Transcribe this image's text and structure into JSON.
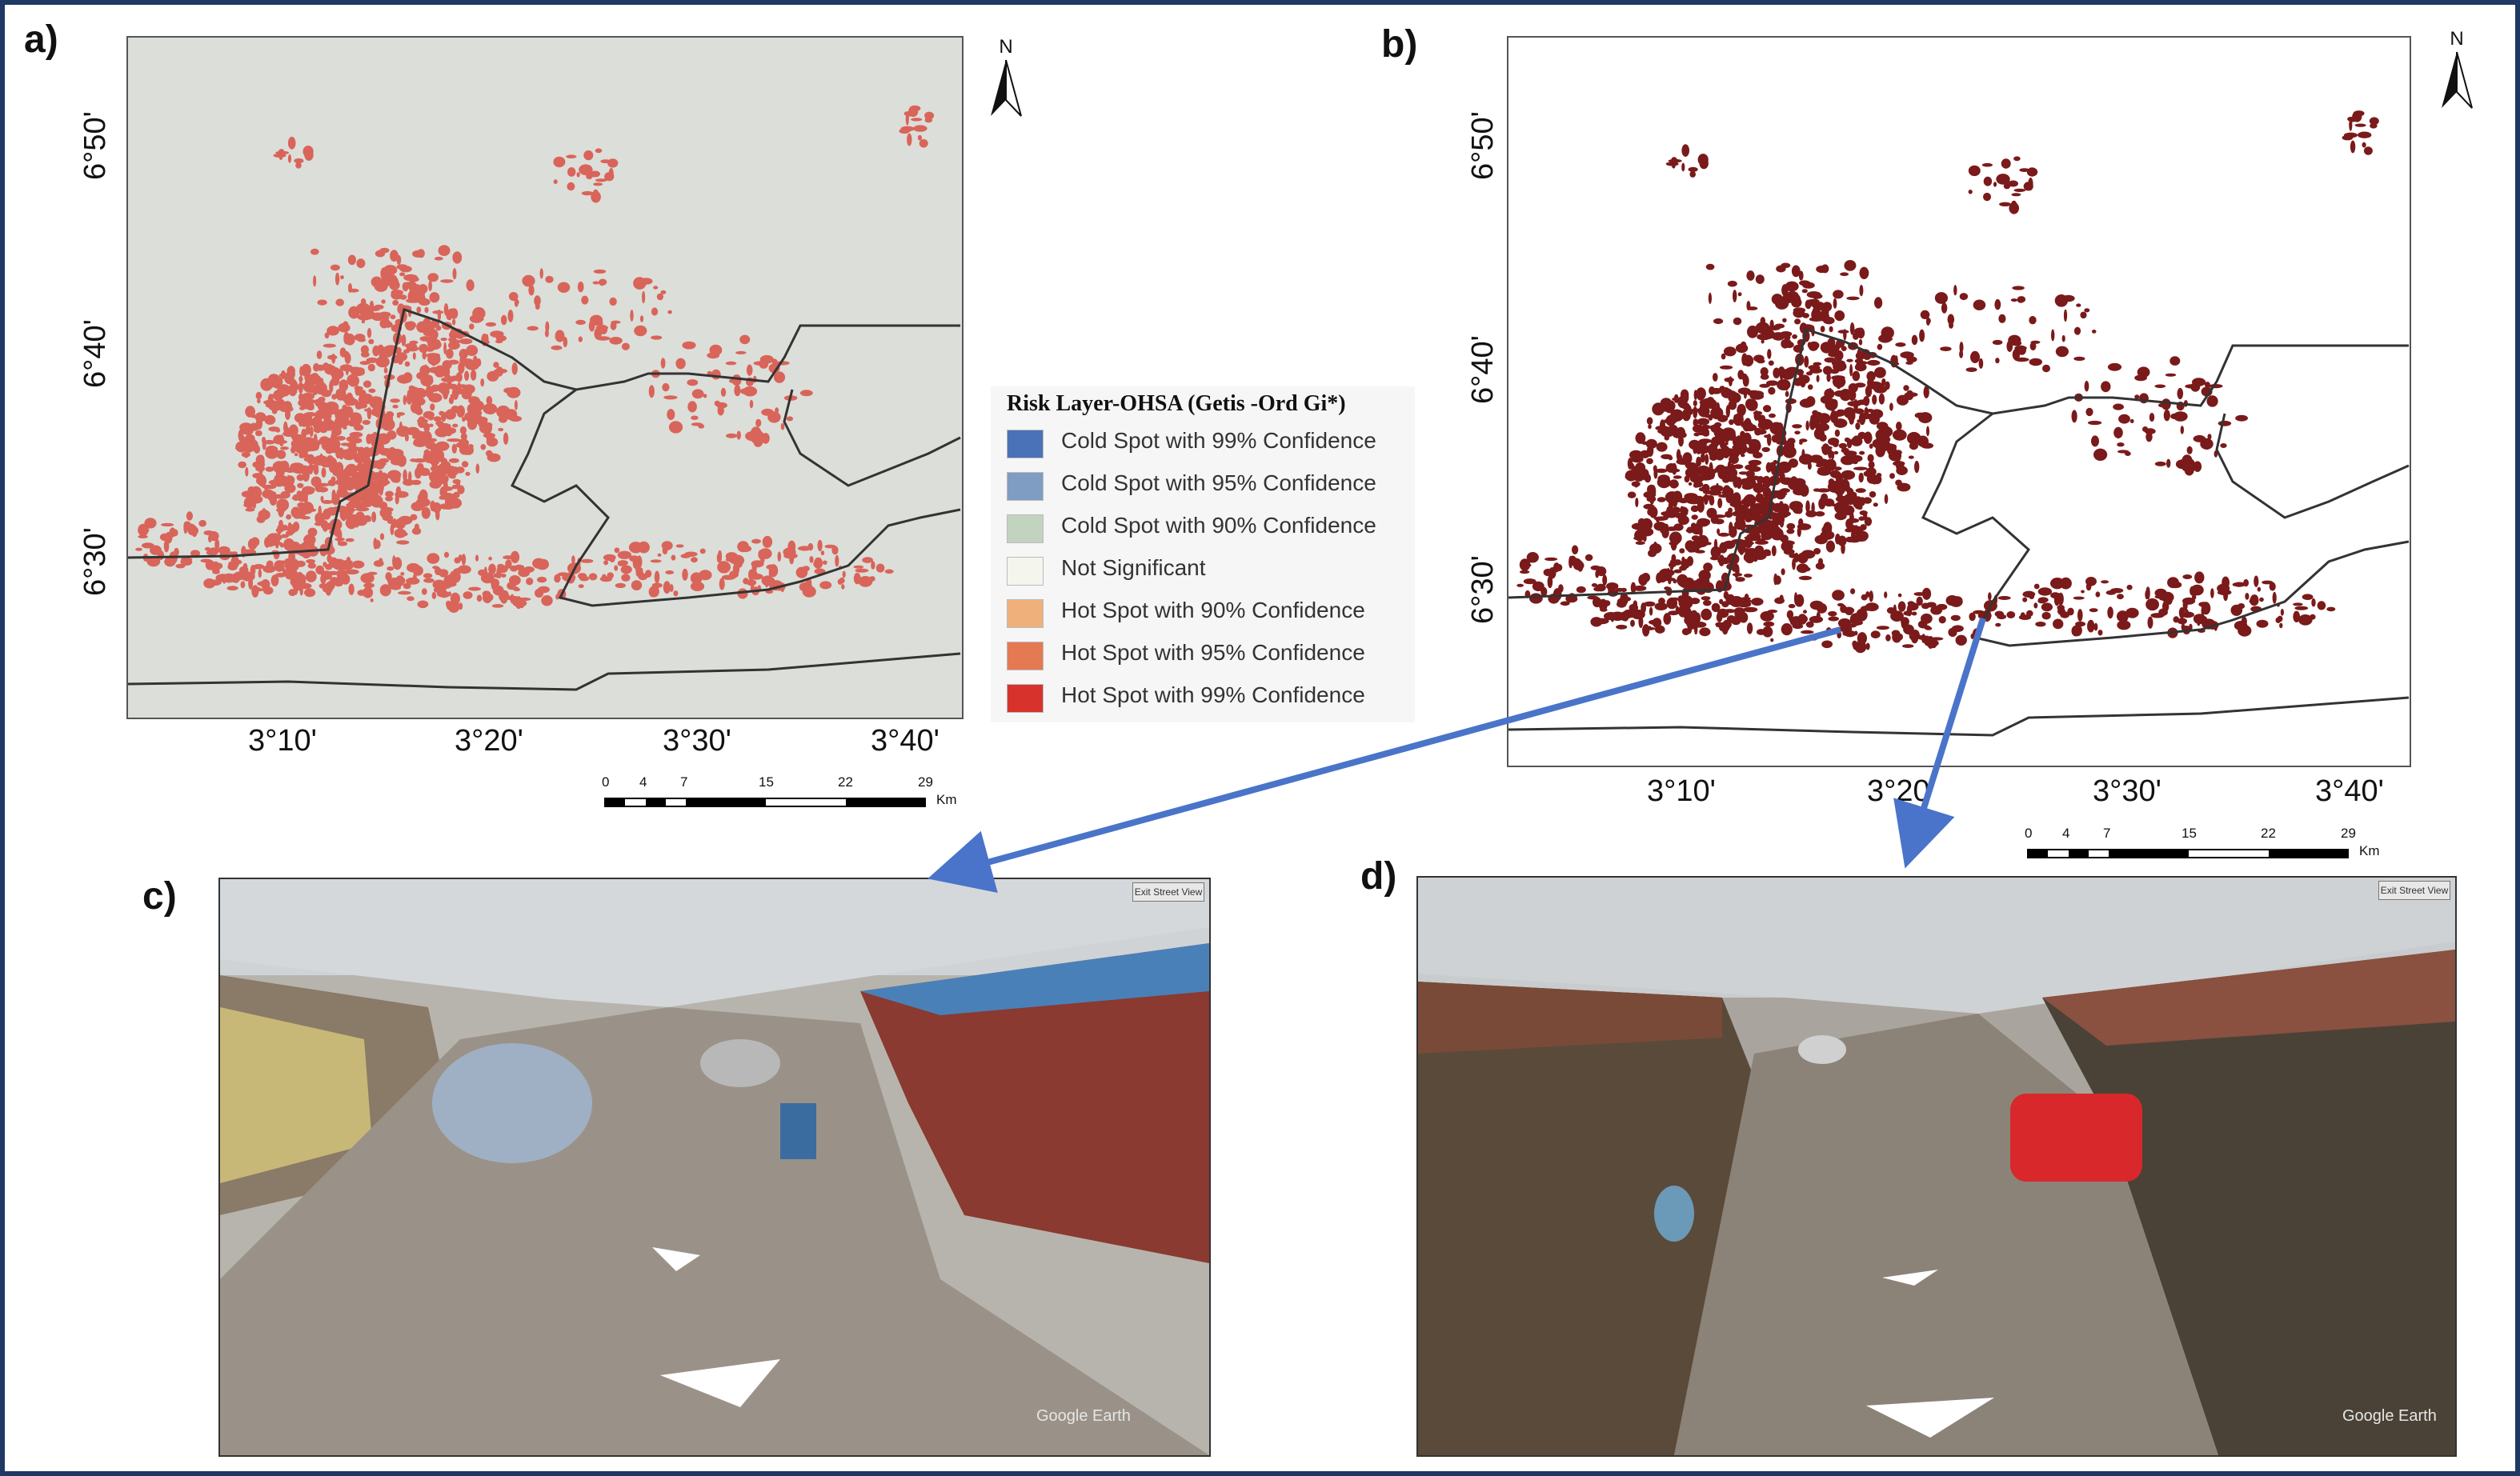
{
  "panels": {
    "a": {
      "label": "a)"
    },
    "b": {
      "label": "b)"
    },
    "c": {
      "label": "c)"
    },
    "d": {
      "label": "d)"
    }
  },
  "map": {
    "lat_ticks": [
      "6°50'",
      "6°40'",
      "6°30'"
    ],
    "lon_ticks": [
      "3°10'",
      "3°20'",
      "3°30'",
      "3°40'"
    ],
    "north_label": "N",
    "scale": {
      "labels": [
        "0",
        "4",
        "7",
        "15",
        "22",
        "29"
      ],
      "unit": "Km"
    }
  },
  "legend": {
    "title": "Risk Layer-OHSA (Getis -Ord Gi*)",
    "items": [
      {
        "label": "Cold Spot with 99% Confidence",
        "color": "#4a72b8"
      },
      {
        "label": "Cold Spot with 95% Confidence",
        "color": "#7f9cc2"
      },
      {
        "label": "Cold Spot with 90% Confidence",
        "color": "#c2d4bf"
      },
      {
        "label": "Not Significant",
        "color": "#f4f6ee"
      },
      {
        "label": "Hot Spot with 90% Confidence",
        "color": "#f0b07c"
      },
      {
        "label": "Hot Spot with 95% Confidence",
        "color": "#e57a52"
      },
      {
        "label": "Hot Spot with 99% Confidence",
        "color": "#d8322c"
      }
    ]
  },
  "colors": {
    "map_a_background": "#dcded9",
    "map_a_hotspots": "#d9645a",
    "map_b_hotspots": "#7a1a1a",
    "arrow": "#4a74c9",
    "frame": "#1f3864"
  },
  "photos": {
    "c": {
      "source_text": "Google Earth",
      "exit_button": "Exit Street View"
    },
    "d": {
      "source_text": "Google Earth",
      "exit_button": "Exit Street View"
    }
  }
}
